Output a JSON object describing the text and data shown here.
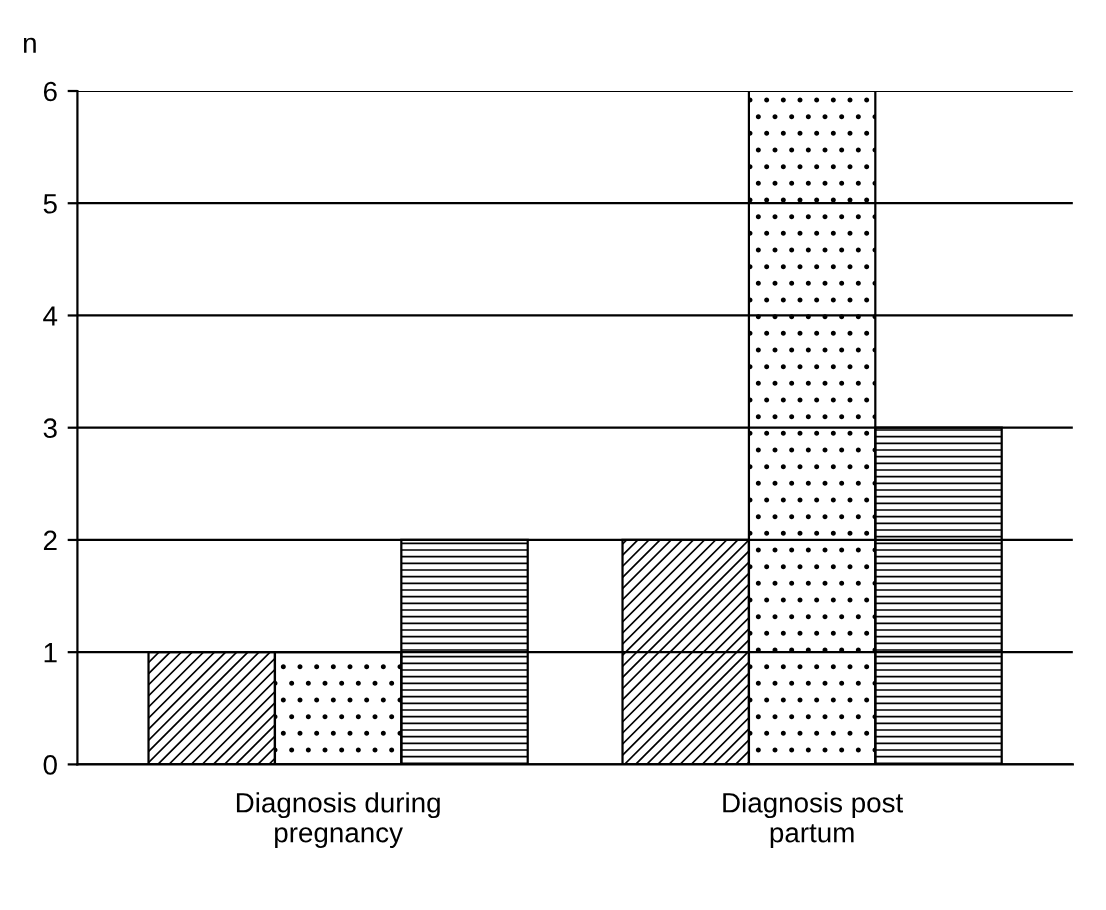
{
  "chart_data": {
    "type": "bar",
    "ylabel": "n",
    "categories": [
      "Diagnosis during\npregnancy",
      "Diagnosis post\npartum"
    ],
    "series": [
      {
        "color": "#000000",
        "values": [
          1,
          2
        ]
      },
      {
        "color": "#000000",
        "values": [
          1,
          6
        ]
      },
      {
        "color": "#000000",
        "values": [
          2,
          3
        ]
      }
    ],
    "ylim": [
      0,
      6
    ],
    "yticks": [
      0,
      1,
      2,
      3,
      4,
      5,
      6
    ],
    "grid": "y"
  }
}
